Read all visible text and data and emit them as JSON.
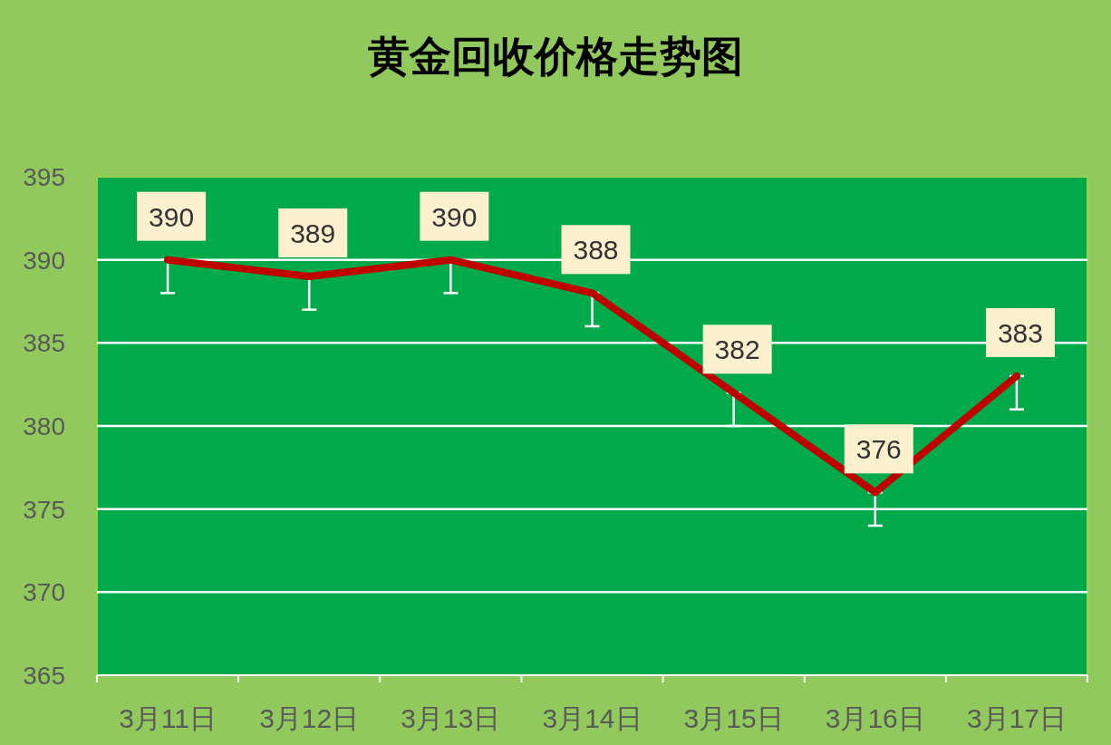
{
  "chart_data": {
    "type": "line",
    "title": "黄金回收价格走势图",
    "categories": [
      "3月11日",
      "3月12日",
      "3月13日",
      "3月14日",
      "3月15日",
      "3月16日",
      "3月17日"
    ],
    "series": [
      {
        "color": "#c00000",
        "values": [
          390,
          389,
          390,
          388,
          382,
          376,
          383
        ],
        "errors": [
          [
            388,
            390
          ],
          [
            387,
            389
          ],
          [
            388,
            390
          ],
          [
            386,
            388
          ],
          [
            380,
            382
          ],
          [
            374,
            376
          ],
          [
            381,
            383
          ]
        ]
      }
    ],
    "ylim": [
      365,
      395
    ],
    "yticks": [
      365,
      370,
      375,
      380,
      385,
      390,
      395
    ],
    "grid": "y",
    "data_labels": true,
    "marker": "none",
    "line_style": "solid"
  }
}
